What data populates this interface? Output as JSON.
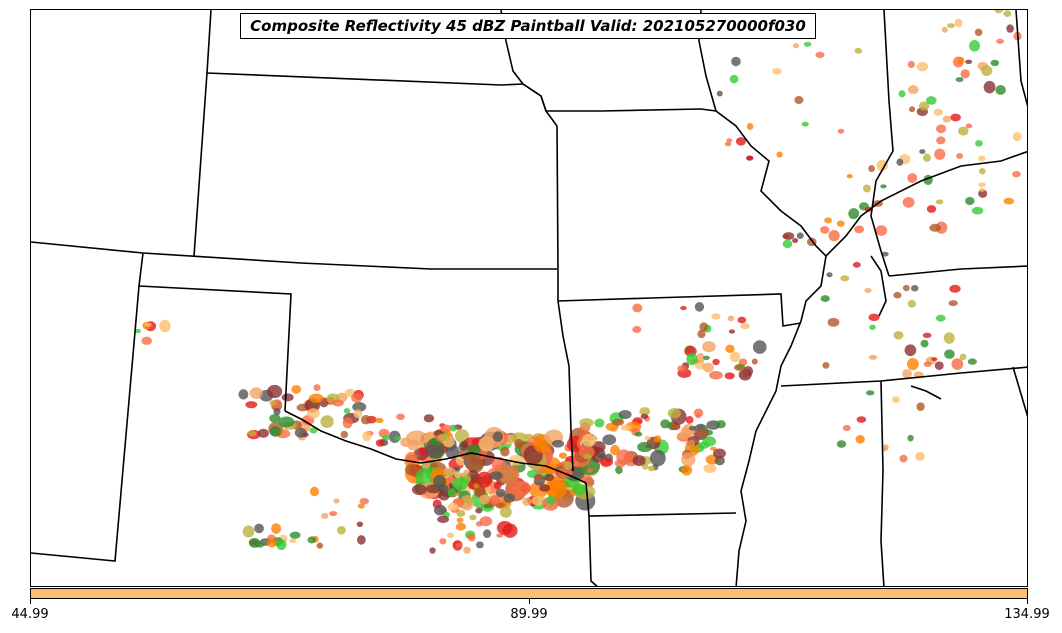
{
  "title": "Composite Reflectivity 45 dBZ Paintball Valid: 202105270000f030",
  "colorbar": {
    "color": "#fdbf6f",
    "ticks": [
      "44.99",
      "89.99",
      "134.99"
    ]
  },
  "map": {
    "border_color": "#000000",
    "member_colors": [
      "#e31a1c",
      "#ff7f00",
      "#b15928",
      "#bdb13f",
      "#33cc33",
      "#fdbf6f",
      "#8b2f2f",
      "#555555",
      "#fb6a4a",
      "#f4a261",
      "#2e8b2e",
      "#f46d43"
    ]
  }
}
